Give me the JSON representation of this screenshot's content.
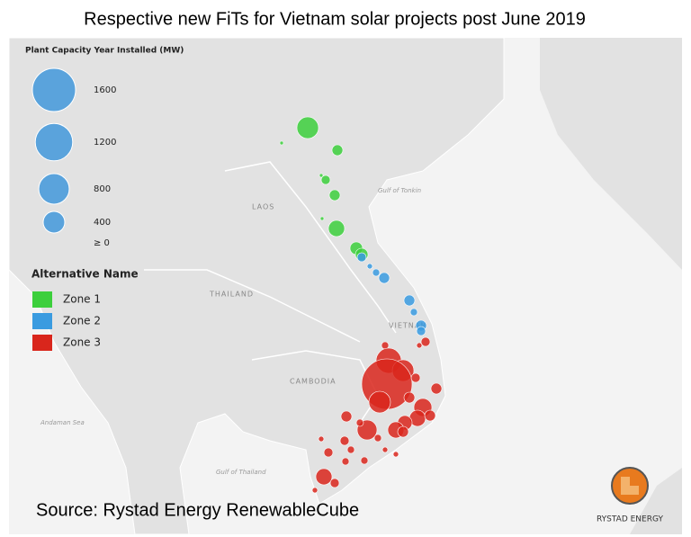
{
  "title": "Respective new FiTs for Vietnam solar projects post June 2019",
  "size_legend": {
    "title": "Plant Capacity Year Installed  (MW)",
    "values": [
      1600,
      1200,
      800,
      400,
      {
        "value": 0,
        "label": "≥ 0"
      }
    ]
  },
  "color_legend": {
    "title": "Alternative Name",
    "zones": [
      {
        "name": "Zone 1",
        "color": "#3ccf3c"
      },
      {
        "name": "Zone 2",
        "color": "#3a9be0"
      },
      {
        "name": "Zone 3",
        "color": "#d9261c"
      }
    ]
  },
  "map_labels": {
    "laos": "LAOS",
    "thailand": "THAILAND",
    "cambodia": "CAMBODIA",
    "vietnam": "VIETNAM",
    "gulf_tonkin": "Gulf of Tonkin",
    "andaman": "Andaman Sea",
    "gulf_thailand": "Gulf of Thailand"
  },
  "source": "Source: Rystad Energy RenewableCube",
  "logo": "RYSTAD ENERGY"
}
